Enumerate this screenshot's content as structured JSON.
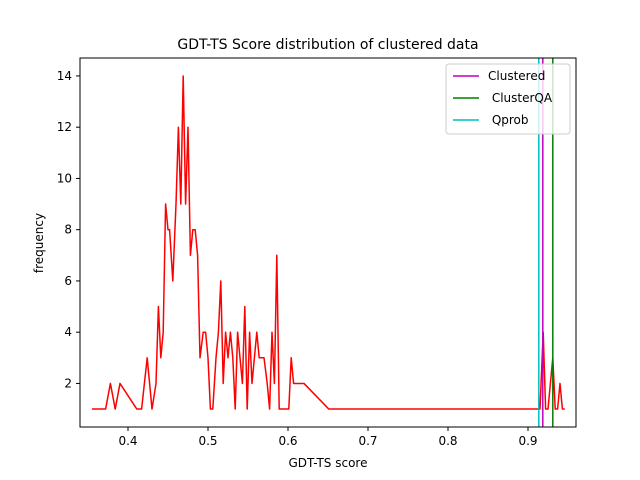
{
  "chart_data": {
    "type": "line",
    "title": "GDT-TS Score distribution of clustered data",
    "xlabel": "GDT-TS score",
    "ylabel": "frequency",
    "xlim": [
      0.34,
      0.96
    ],
    "ylim": [
      0.3,
      14.7
    ],
    "xticks": [
      0.4,
      0.5,
      0.6,
      0.7,
      0.8,
      0.9
    ],
    "xtick_labels": [
      "0.4",
      "0.5",
      "0.6",
      "0.7",
      "0.8",
      "0.9"
    ],
    "yticks": [
      2,
      4,
      6,
      8,
      10,
      12,
      14
    ],
    "ytick_labels": [
      "2",
      "4",
      "6",
      "8",
      "10",
      "12",
      "14"
    ],
    "grid": false,
    "legend_position": "top-right",
    "legend": [
      {
        "label": "Clustered",
        "color": "#bf00bf"
      },
      {
        "label": " ClusterQA",
        "color": "#008000"
      },
      {
        "label": " Qprob",
        "color": "#00bfbf"
      }
    ],
    "vlines": [
      {
        "name": "Clustered",
        "x": 0.9185,
        "color": "#bf00bf"
      },
      {
        "name": " ClusterQA",
        "x": 0.931,
        "color": "#008000"
      },
      {
        "name": " Qprob",
        "x": 0.9135,
        "color": "#00bfbf"
      }
    ],
    "series": [
      {
        "color": "#ff0000",
        "x": [
          0.355,
          0.372,
          0.378,
          0.384,
          0.39,
          0.411,
          0.417,
          0.424,
          0.43,
          0.435,
          0.438,
          0.441,
          0.444,
          0.447,
          0.45,
          0.452,
          0.456,
          0.46,
          0.463,
          0.466,
          0.469,
          0.472,
          0.475,
          0.478,
          0.481,
          0.484,
          0.487,
          0.49,
          0.494,
          0.497,
          0.5,
          0.503,
          0.506,
          0.51,
          0.513,
          0.516,
          0.519,
          0.522,
          0.525,
          0.528,
          0.531,
          0.534,
          0.537,
          0.54,
          0.543,
          0.546,
          0.549,
          0.552,
          0.555,
          0.558,
          0.561,
          0.564,
          0.567,
          0.57,
          0.574,
          0.577,
          0.58,
          0.583,
          0.586,
          0.589,
          0.592,
          0.595,
          0.598,
          0.601,
          0.604,
          0.607,
          0.611,
          0.614,
          0.62,
          0.651,
          0.7,
          0.8,
          0.9,
          0.915,
          0.919,
          0.922,
          0.925,
          0.928,
          0.931,
          0.934,
          0.937,
          0.94,
          0.943,
          0.946
        ],
        "y": [
          1,
          1,
          2,
          1,
          2,
          1,
          1,
          3,
          1,
          2,
          5,
          3,
          4,
          9,
          8,
          8,
          6,
          9,
          12,
          9,
          14,
          9,
          12,
          7,
          8,
          8,
          7,
          3,
          4,
          4,
          3,
          1,
          1,
          3,
          4,
          6,
          2,
          4,
          3,
          4,
          3,
          1,
          4,
          3,
          2,
          5,
          1,
          4,
          2,
          3,
          4,
          3,
          3,
          3,
          2,
          1,
          4,
          2,
          7,
          1,
          1,
          1,
          1,
          1,
          3,
          2,
          2,
          2,
          2,
          1,
          1,
          1,
          1,
          1,
          4,
          1,
          1,
          2,
          3,
          1,
          1,
          2,
          1,
          1
        ]
      }
    ]
  }
}
